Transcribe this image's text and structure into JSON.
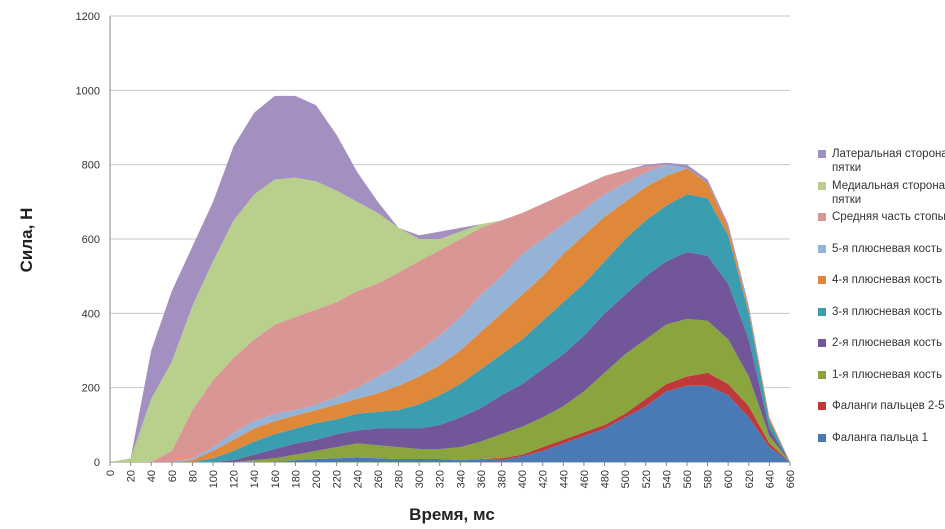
{
  "chart_data": {
    "type": "stacked_area",
    "y_label": "Сила, Н",
    "x_label": "Время, мс",
    "x": [
      0,
      20,
      40,
      60,
      80,
      100,
      120,
      140,
      160,
      180,
      200,
      220,
      240,
      260,
      280,
      300,
      320,
      340,
      360,
      380,
      400,
      420,
      440,
      460,
      480,
      500,
      520,
      540,
      560,
      580,
      600,
      620,
      640,
      660
    ],
    "xlim": [
      0,
      660
    ],
    "xticks": [
      0,
      20,
      40,
      60,
      80,
      100,
      120,
      140,
      160,
      180,
      200,
      220,
      240,
      260,
      280,
      300,
      320,
      340,
      360,
      380,
      400,
      420,
      440,
      460,
      480,
      500,
      520,
      540,
      560,
      580,
      600,
      620,
      640,
      660
    ],
    "ylim": [
      0,
      1200
    ],
    "yticks": [
      0,
      200,
      400,
      600,
      800,
      1000,
      1200
    ],
    "grid": true,
    "legend": "right",
    "series": [
      {
        "name": "Фаланга пальца 1",
        "color": "#4a7ab5",
        "values": [
          0,
          0,
          0,
          0,
          0,
          0,
          0,
          0,
          0,
          5,
          8,
          10,
          12,
          10,
          8,
          8,
          8,
          5,
          8,
          5,
          15,
          30,
          50,
          70,
          90,
          120,
          150,
          190,
          205,
          205,
          180,
          120,
          40,
          0
        ]
      },
      {
        "name": "Фаланги пальцев 2-5",
        "color": "#c0393a",
        "values": [
          0,
          0,
          0,
          0,
          0,
          0,
          0,
          0,
          0,
          0,
          0,
          0,
          0,
          0,
          0,
          0,
          0,
          0,
          0,
          5,
          5,
          10,
          10,
          10,
          10,
          10,
          20,
          20,
          25,
          35,
          30,
          30,
          10,
          0
        ]
      },
      {
        "name": "1-я плюсневая кость",
        "color": "#8aa53e",
        "values": [
          0,
          0,
          0,
          0,
          0,
          0,
          0,
          5,
          10,
          15,
          22,
          30,
          38,
          35,
          32,
          27,
          27,
          35,
          47,
          65,
          75,
          80,
          90,
          110,
          140,
          160,
          160,
          160,
          155,
          140,
          120,
          80,
          20,
          0
        ]
      },
      {
        "name": "2-я плюсневая кость",
        "color": "#71579a",
        "values": [
          0,
          0,
          0,
          0,
          0,
          0,
          5,
          15,
          25,
          30,
          30,
          35,
          35,
          45,
          50,
          55,
          65,
          80,
          90,
          105,
          115,
          130,
          140,
          150,
          160,
          160,
          170,
          170,
          180,
          175,
          150,
          100,
          20,
          0
        ]
      },
      {
        "name": "3-я плюсневая кость",
        "color": "#3b9db0",
        "values": [
          0,
          0,
          0,
          0,
          0,
          10,
          25,
          35,
          40,
          40,
          45,
          40,
          45,
          45,
          50,
          65,
          80,
          90,
          105,
          110,
          120,
          130,
          140,
          140,
          140,
          150,
          150,
          150,
          155,
          155,
          130,
          70,
          20,
          0
        ]
      },
      {
        "name": "4-я плюсневая кость",
        "color": "#e0883a",
        "values": [
          0,
          0,
          0,
          0,
          5,
          20,
          30,
          35,
          35,
          35,
          35,
          40,
          40,
          50,
          65,
          75,
          80,
          90,
          100,
          110,
          120,
          120,
          130,
          130,
          120,
          100,
          90,
          80,
          70,
          40,
          20,
          10,
          10,
          0
        ]
      },
      {
        "name": "5-я плюсневая кость",
        "color": "#95b3d7",
        "values": [
          0,
          0,
          0,
          0,
          5,
          10,
          20,
          20,
          20,
          15,
          15,
          20,
          30,
          45,
          55,
          70,
          80,
          90,
          100,
          100,
          110,
          100,
          80,
          70,
          60,
          50,
          40,
          30,
          0,
          0,
          0,
          0,
          0,
          0
        ]
      },
      {
        "name": "Средняя часть стопы",
        "color": "#d99694",
        "values": [
          0,
          0,
          0,
          30,
          130,
          180,
          200,
          220,
          240,
          250,
          255,
          255,
          260,
          250,
          250,
          240,
          230,
          210,
          180,
          150,
          110,
          95,
          80,
          65,
          50,
          35,
          15,
          0,
          0,
          0,
          0,
          0,
          0,
          0
        ]
      },
      {
        "name": "Медиальная сторона пятки",
        "color": "#b8d08c",
        "values": [
          0,
          10,
          170,
          240,
          280,
          320,
          370,
          390,
          390,
          375,
          345,
          300,
          240,
          190,
          120,
          60,
          30,
          20,
          10,
          0,
          0,
          0,
          0,
          0,
          0,
          0,
          0,
          0,
          0,
          0,
          0,
          0,
          0,
          0
        ]
      },
      {
        "name": "Латеральная сторона пятки",
        "color": "#a390c0",
        "values": [
          0,
          0,
          130,
          190,
          160,
          160,
          200,
          220,
          225,
          220,
          205,
          150,
          80,
          30,
          0,
          10,
          20,
          10,
          0,
          0,
          0,
          0,
          0,
          0,
          0,
          0,
          5,
          5,
          10,
          10,
          10,
          10,
          0,
          0
        ]
      }
    ]
  }
}
